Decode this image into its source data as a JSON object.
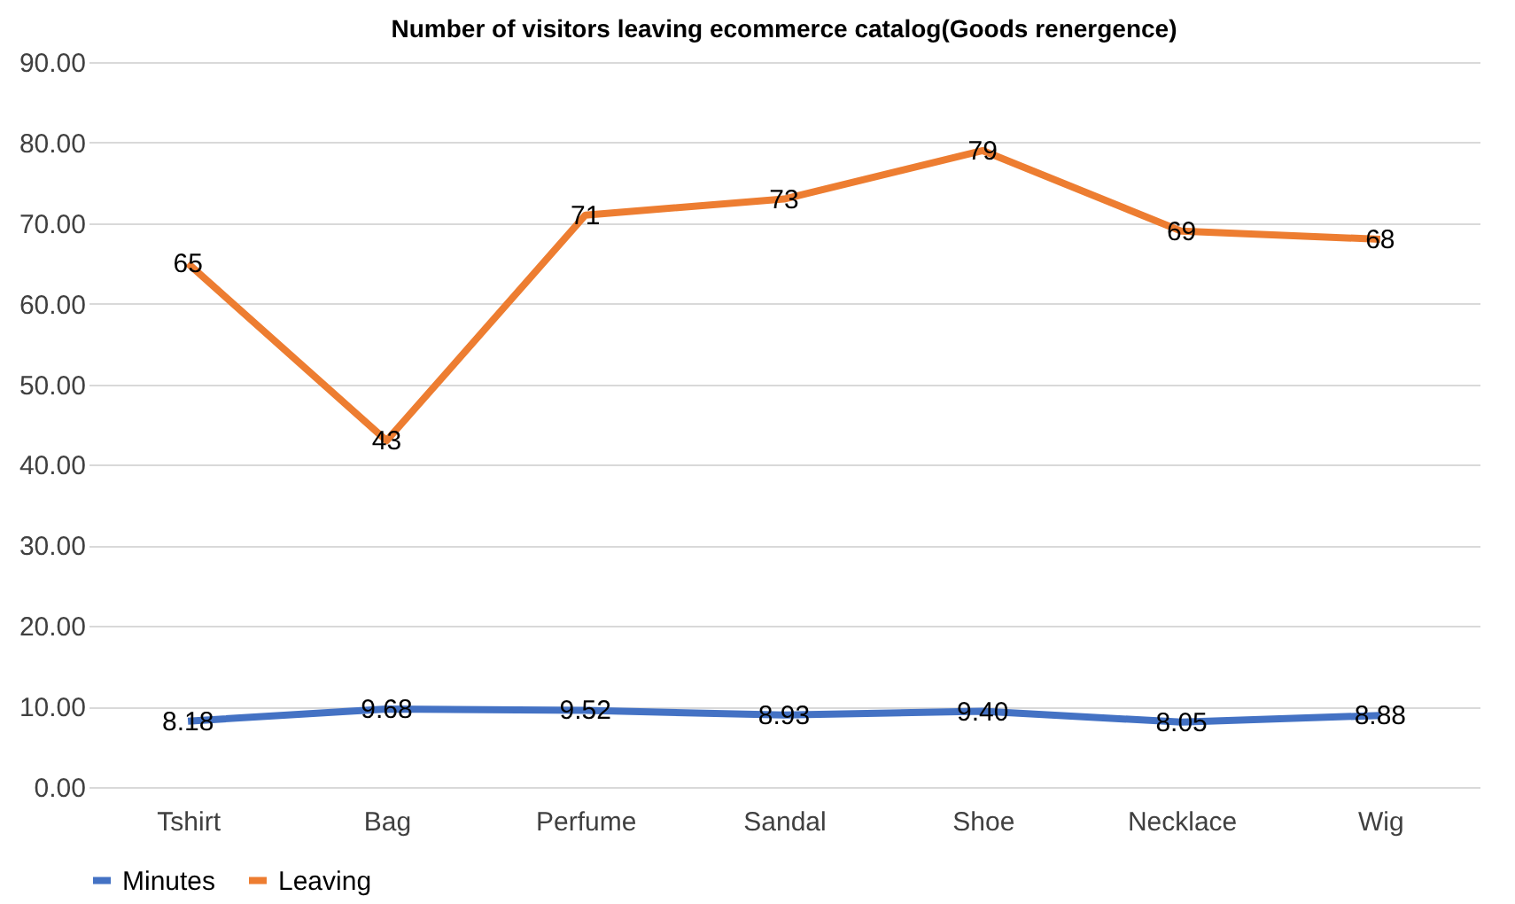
{
  "chart_data": {
    "type": "line",
    "title": "Number of visitors leaving ecommerce catalog(Goods renergence)",
    "categories": [
      "Tshirt",
      "Bag",
      "Perfume",
      "Sandal",
      "Shoe",
      "Necklace",
      "Wig"
    ],
    "series": [
      {
        "name": "Minutes",
        "color": "#4472c4",
        "values": [
          8.18,
          9.68,
          9.52,
          8.93,
          9.4,
          8.05,
          8.88
        ],
        "value_labels": [
          "8.18",
          "9.68",
          "9.52",
          "8.93",
          "9.40",
          "8.05",
          "8.88"
        ]
      },
      {
        "name": "Leaving",
        "color": "#ed7d31",
        "values": [
          65,
          43,
          71,
          73,
          79,
          69,
          68
        ],
        "value_labels": [
          "65",
          "43",
          "71",
          "73",
          "79",
          "69",
          "68"
        ]
      }
    ],
    "ylim": [
      0,
      90
    ],
    "yticks": [
      {
        "value": 0,
        "label": "0.00"
      },
      {
        "value": 10,
        "label": "10.00"
      },
      {
        "value": 20,
        "label": "20.00"
      },
      {
        "value": 30,
        "label": "30.00"
      },
      {
        "value": 40,
        "label": "40.00"
      },
      {
        "value": 50,
        "label": "50.00"
      },
      {
        "value": 60,
        "label": "60.00"
      },
      {
        "value": 70,
        "label": "70.00"
      },
      {
        "value": 80,
        "label": "80.00"
      },
      {
        "value": 90,
        "label": "90.00"
      }
    ],
    "grid": "y",
    "legend": "bottom",
    "marker": "none",
    "line_style": "solid"
  }
}
